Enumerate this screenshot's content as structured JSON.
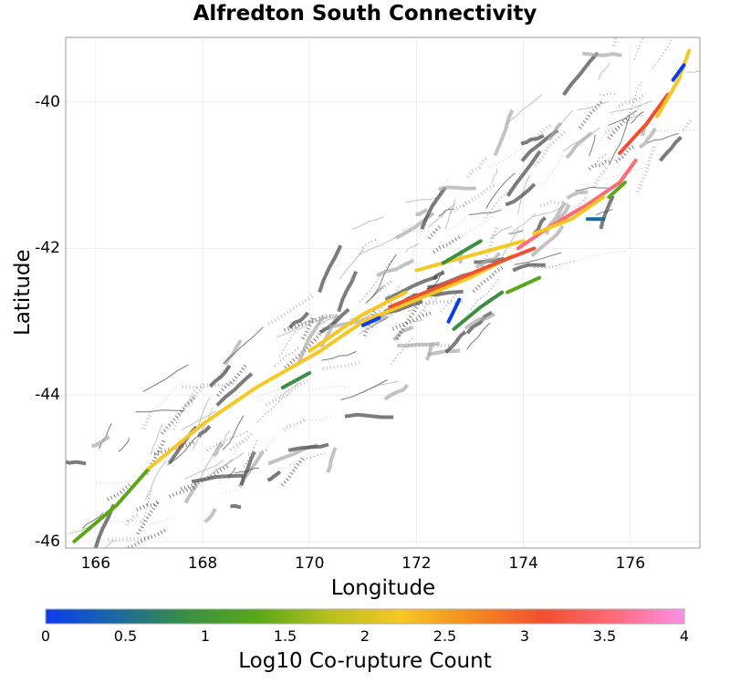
{
  "title": "Alfredton South Connectivity",
  "chart_data": {
    "type": "map",
    "xlabel": "Longitude",
    "ylabel": "Latitude",
    "xlim": [
      165.44,
      177.3
    ],
    "ylim": [
      -46.09,
      -39.12
    ],
    "xticks": [
      "166",
      "168",
      "170",
      "172",
      "174",
      "176"
    ],
    "yticks": [
      "-40",
      "-42",
      "-44",
      "-46"
    ],
    "grid": true,
    "colorbar": {
      "label": "Log10 Co-rupture Count",
      "ticks": [
        "0",
        "0.5",
        "1",
        "1.5",
        "2",
        "2.5",
        "3",
        "3.5",
        "4"
      ],
      "range": [
        0,
        4
      ],
      "colors": [
        "#0a3cf0",
        "#1a6aa0",
        "#3a9040",
        "#5aa818",
        "#b8c020",
        "#f5c825",
        "#f58a20",
        "#f05030",
        "#ff6a78",
        "#ff90e8"
      ]
    },
    "segments": [
      {
        "v": 1.3,
        "pts": [
          [
            165.6,
            -46.0
          ],
          [
            166.4,
            -45.5
          ],
          [
            167.0,
            -45.0
          ]
        ]
      },
      {
        "v": 2.3,
        "pts": [
          [
            167.0,
            -45.0
          ],
          [
            168.0,
            -44.4
          ],
          [
            169.0,
            -43.9
          ],
          [
            170.2,
            -43.4
          ],
          [
            171.0,
            -43.0
          ],
          [
            172.0,
            -42.7
          ],
          [
            173.0,
            -42.4
          ],
          [
            173.8,
            -42.1
          ]
        ]
      },
      {
        "v": 2.0,
        "pts": [
          [
            170.0,
            -43.4
          ],
          [
            171.0,
            -42.9
          ],
          [
            171.8,
            -42.6
          ]
        ]
      },
      {
        "v": 2.0,
        "pts": [
          [
            172.0,
            -42.3
          ],
          [
            173.0,
            -42.1
          ],
          [
            174.0,
            -41.9
          ]
        ]
      },
      {
        "v": 2.9,
        "pts": [
          [
            171.5,
            -42.8
          ],
          [
            172.5,
            -42.5
          ],
          [
            173.5,
            -42.2
          ],
          [
            174.2,
            -42.0
          ]
        ]
      },
      {
        "v": 3.7,
        "pts": [
          [
            173.9,
            -42.0
          ],
          [
            174.5,
            -41.7
          ],
          [
            175.2,
            -41.4
          ],
          [
            175.8,
            -41.1
          ],
          [
            176.1,
            -40.8
          ]
        ]
      },
      {
        "v": 2.2,
        "pts": [
          [
            174.2,
            -41.8
          ],
          [
            174.9,
            -41.6
          ],
          [
            175.5,
            -41.3
          ]
        ]
      },
      {
        "v": 3.2,
        "pts": [
          [
            175.8,
            -40.7
          ],
          [
            176.3,
            -40.3
          ],
          [
            176.7,
            -39.9
          ]
        ]
      },
      {
        "v": 2.3,
        "pts": [
          [
            176.5,
            -40.2
          ],
          [
            176.9,
            -39.7
          ],
          [
            177.1,
            -39.3
          ]
        ]
      },
      {
        "v": 0.1,
        "pts": [
          [
            176.8,
            -39.7
          ],
          [
            177.0,
            -39.5
          ]
        ]
      },
      {
        "v": 0.2,
        "pts": [
          [
            171.0,
            -43.05
          ],
          [
            171.3,
            -42.95
          ]
        ]
      },
      {
        "v": 0.1,
        "pts": [
          [
            172.6,
            -43.0
          ],
          [
            172.8,
            -42.7
          ]
        ]
      },
      {
        "v": 1.0,
        "pts": [
          [
            169.5,
            -43.9
          ],
          [
            170.0,
            -43.7
          ]
        ]
      },
      {
        "v": 1.1,
        "pts": [
          [
            172.7,
            -43.1
          ],
          [
            173.2,
            -42.8
          ],
          [
            173.6,
            -42.6
          ]
        ]
      },
      {
        "v": 1.0,
        "pts": [
          [
            172.5,
            -42.2
          ],
          [
            173.2,
            -41.9
          ]
        ]
      },
      {
        "v": 1.2,
        "pts": [
          [
            175.6,
            -41.3
          ],
          [
            175.9,
            -41.1
          ]
        ]
      },
      {
        "v": 1.5,
        "pts": [
          [
            173.7,
            -42.6
          ],
          [
            174.3,
            -42.4
          ]
        ]
      },
      {
        "v": 0.3,
        "pts": [
          [
            175.2,
            -41.6
          ],
          [
            175.5,
            -41.6
          ]
        ]
      }
    ]
  }
}
